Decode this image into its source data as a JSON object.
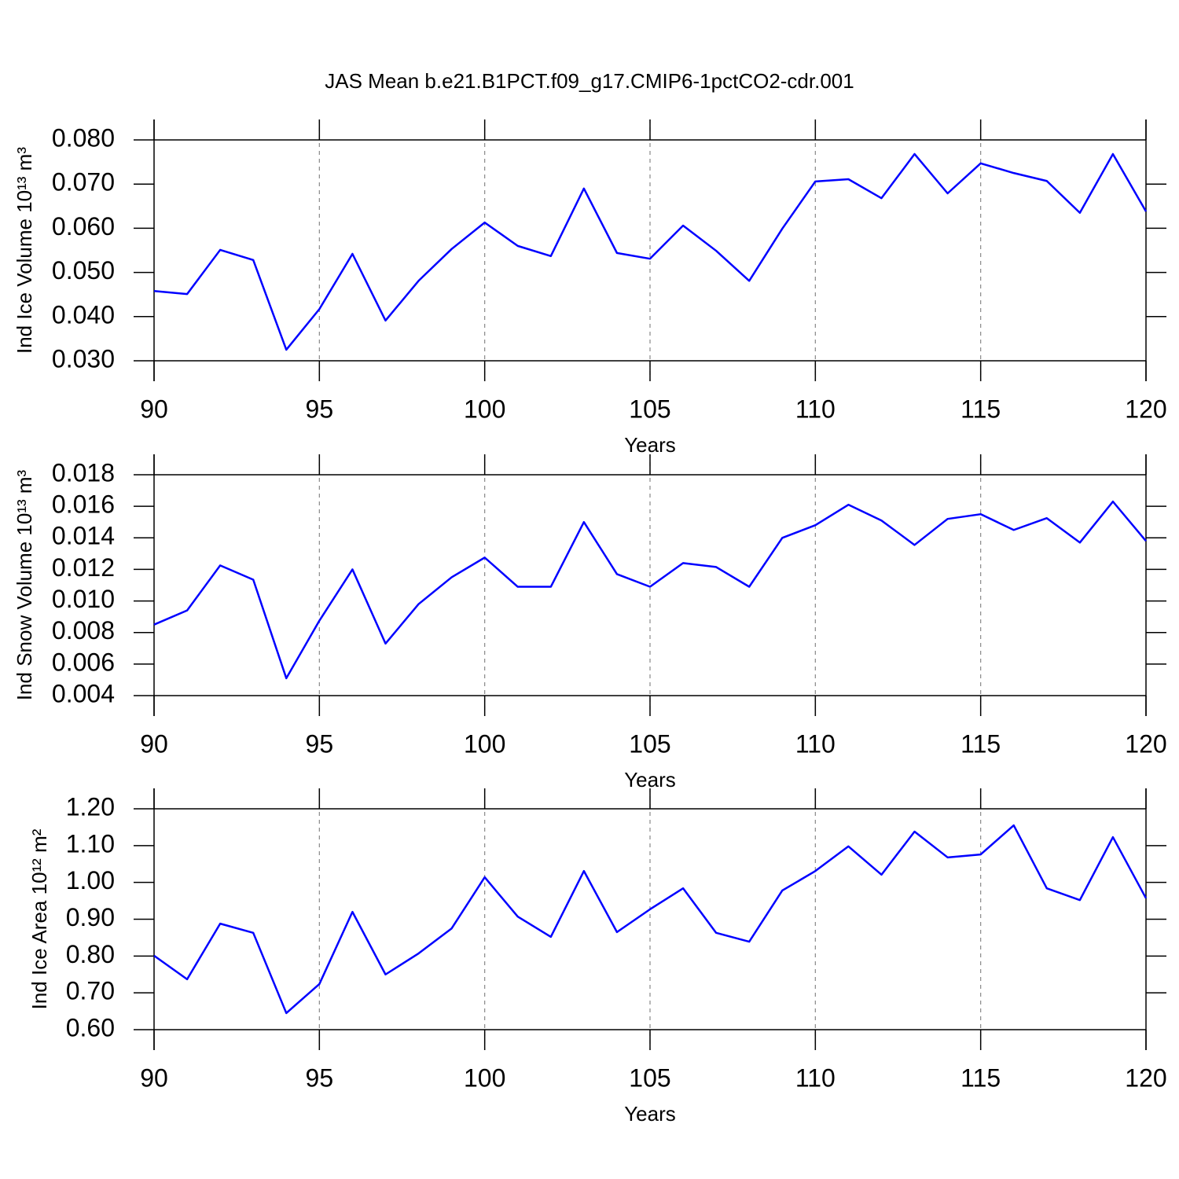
{
  "chart_data": [
    {
      "type": "line",
      "title": "JAS Mean b.e21.B1PCT.f09_g17.CMIP6-1pctCO2-cdr.001",
      "xlabel": "Years",
      "ylabel": "Ind Ice Volume 10¹³ m³",
      "x": [
        90,
        91,
        92,
        93,
        94,
        95,
        96,
        97,
        98,
        99,
        100,
        101,
        102,
        103,
        104,
        105,
        106,
        107,
        108,
        109,
        110,
        111,
        112,
        113,
        114,
        115,
        116,
        117,
        118,
        119,
        120
      ],
      "series": [
        {
          "color": "#0000ff",
          "values": [
            0.0458,
            0.0451,
            0.0551,
            0.0528,
            0.0325,
            0.0417,
            0.0542,
            0.0391,
            0.0481,
            0.0553,
            0.0613,
            0.056,
            0.0537,
            0.069,
            0.0544,
            0.0531,
            0.0606,
            0.0549,
            0.0481,
            0.0599,
            0.0706,
            0.0711,
            0.0668,
            0.0768,
            0.0679,
            0.0747,
            0.0725,
            0.0707,
            0.0635,
            0.0768,
            0.0638
          ]
        }
      ],
      "xlim": [
        90,
        120
      ],
      "xticks": [
        90,
        95,
        100,
        105,
        110,
        115,
        120
      ],
      "ylim": [
        0.03,
        0.08
      ],
      "yticks": [
        {
          "value": 0.03,
          "label": "0.030"
        },
        {
          "value": 0.04,
          "label": "0.040"
        },
        {
          "value": 0.05,
          "label": "0.050"
        },
        {
          "value": 0.06,
          "label": "0.060"
        },
        {
          "value": 0.07,
          "label": "0.070"
        },
        {
          "value": 0.08,
          "label": "0.080"
        }
      ],
      "grid": true
    },
    {
      "type": "line",
      "xlabel": "Years",
      "ylabel": "Ind Snow Volume 10¹³ m³",
      "x": [
        90,
        91,
        92,
        93,
        94,
        95,
        96,
        97,
        98,
        99,
        100,
        101,
        102,
        103,
        104,
        105,
        106,
        107,
        108,
        109,
        110,
        111,
        112,
        113,
        114,
        115,
        116,
        117,
        118,
        119,
        120
      ],
      "series": [
        {
          "color": "#0000ff",
          "values": [
            0.0085,
            0.0094,
            0.01225,
            0.01135,
            0.0051,
            0.00875,
            0.012,
            0.0073,
            0.0098,
            0.0115,
            0.01275,
            0.0109,
            0.0109,
            0.015,
            0.0117,
            0.0109,
            0.0124,
            0.01215,
            0.0109,
            0.014,
            0.0148,
            0.0161,
            0.0151,
            0.01355,
            0.0152,
            0.0155,
            0.0145,
            0.01525,
            0.0137,
            0.0163,
            0.0138
          ]
        }
      ],
      "xlim": [
        90,
        120
      ],
      "xticks": [
        90,
        95,
        100,
        105,
        110,
        115,
        120
      ],
      "ylim": [
        0.004,
        0.018
      ],
      "yticks": [
        0.004,
        0.006,
        0.008,
        {
          "value": 0.01,
          "label": "0.010"
        },
        0.012,
        0.014,
        0.016,
        0.018
      ],
      "grid": true
    },
    {
      "type": "line",
      "xlabel": "Years",
      "ylabel": "Ind Ice Area 10¹² m²",
      "x": [
        90,
        91,
        92,
        93,
        94,
        95,
        96,
        97,
        98,
        99,
        100,
        101,
        102,
        103,
        104,
        105,
        106,
        107,
        108,
        109,
        110,
        111,
        112,
        113,
        114,
        115,
        116,
        117,
        118,
        119,
        120
      ],
      "series": [
        {
          "color": "#0000ff",
          "values": [
            0.801,
            0.737,
            0.888,
            0.863,
            0.645,
            0.724,
            0.92,
            0.75,
            0.807,
            0.875,
            1.014,
            0.907,
            0.852,
            1.031,
            0.865,
            0.927,
            0.984,
            0.863,
            0.839,
            0.978,
            1.031,
            1.098,
            1.021,
            1.138,
            1.068,
            1.076,
            1.155,
            0.984,
            0.952,
            1.123,
            0.957
          ]
        }
      ],
      "xlim": [
        90,
        120
      ],
      "xticks": [
        90,
        95,
        100,
        105,
        110,
        115,
        120
      ],
      "ylim": [
        0.6,
        1.2
      ],
      "yticks": [
        {
          "value": 0.6,
          "label": "0.60"
        },
        {
          "value": 0.7,
          "label": "0.70"
        },
        {
          "value": 0.8,
          "label": "0.80"
        },
        {
          "value": 0.9,
          "label": "0.90"
        },
        {
          "value": 1.0,
          "label": "1.00"
        },
        {
          "value": 1.1,
          "label": "1.10"
        },
        {
          "value": 1.2,
          "label": "1.20"
        }
      ],
      "grid": true
    }
  ]
}
